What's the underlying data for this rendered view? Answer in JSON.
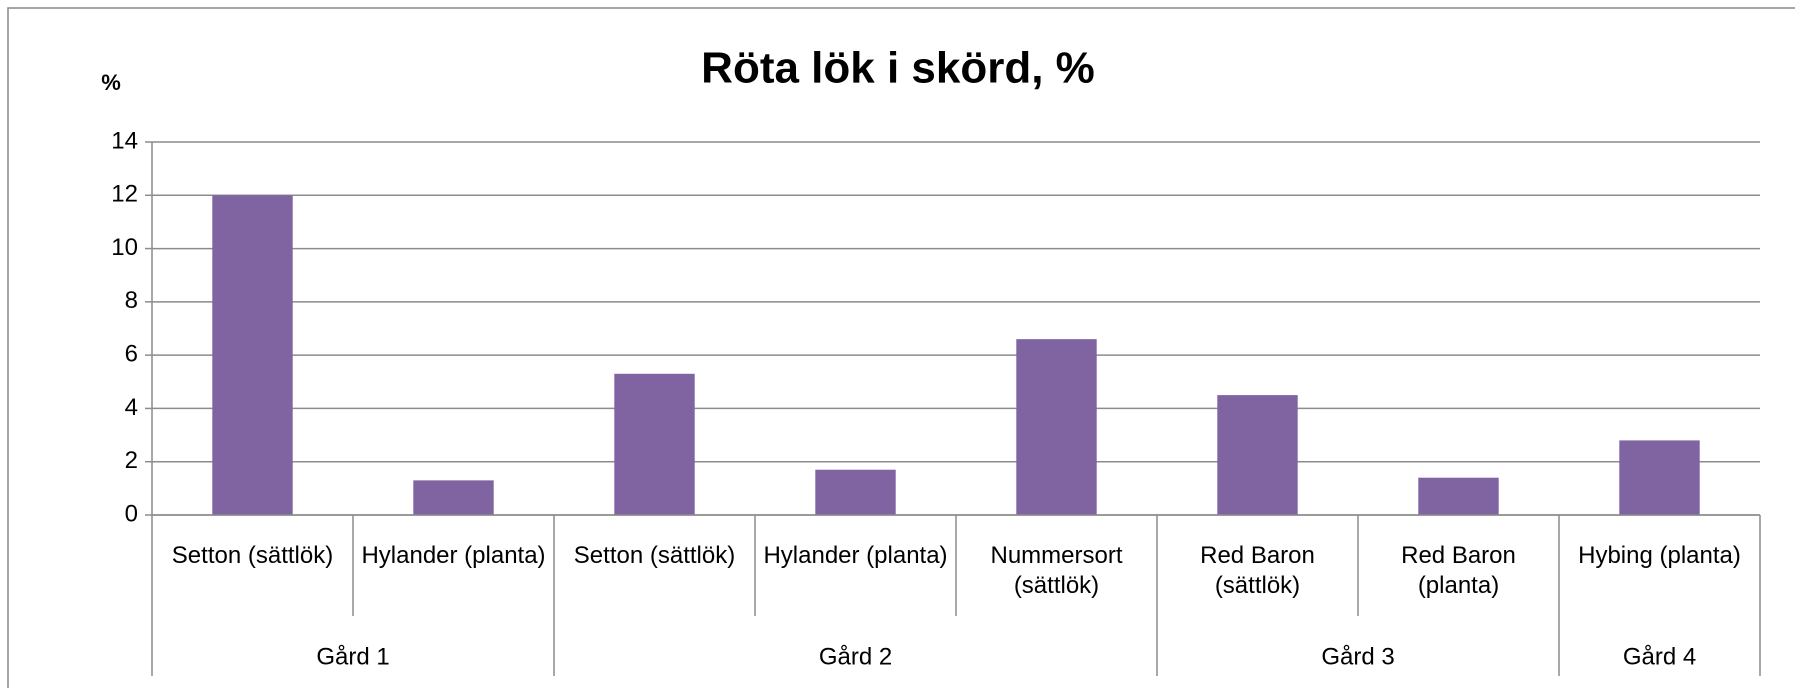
{
  "chart_data": {
    "type": "bar",
    "title": "Röta lök i skörd, %",
    "y_axis_label": "%",
    "categories": [
      "Setton (sättlök)",
      "Hylander (planta)",
      "Setton (sättlök)",
      "Hylander (planta)",
      "Nummersort (sättlök)",
      "Red Baron (sättlök)",
      "Red Baron (planta)",
      "Hybing (planta)"
    ],
    "groups": [
      "Gård 1",
      "Gård 1",
      "Gård 2",
      "Gård 2",
      "Gård 2",
      "Gård 3",
      "Gård 3",
      "Gård 4"
    ],
    "values": [
      12,
      1.3,
      5.3,
      1.7,
      6.6,
      4.5,
      1.4,
      2.8
    ],
    "color": "#8064a2",
    "ylim": [
      0,
      14
    ],
    "yticks": [
      0,
      2,
      4,
      6,
      8,
      10,
      12,
      14
    ],
    "grid": true
  }
}
